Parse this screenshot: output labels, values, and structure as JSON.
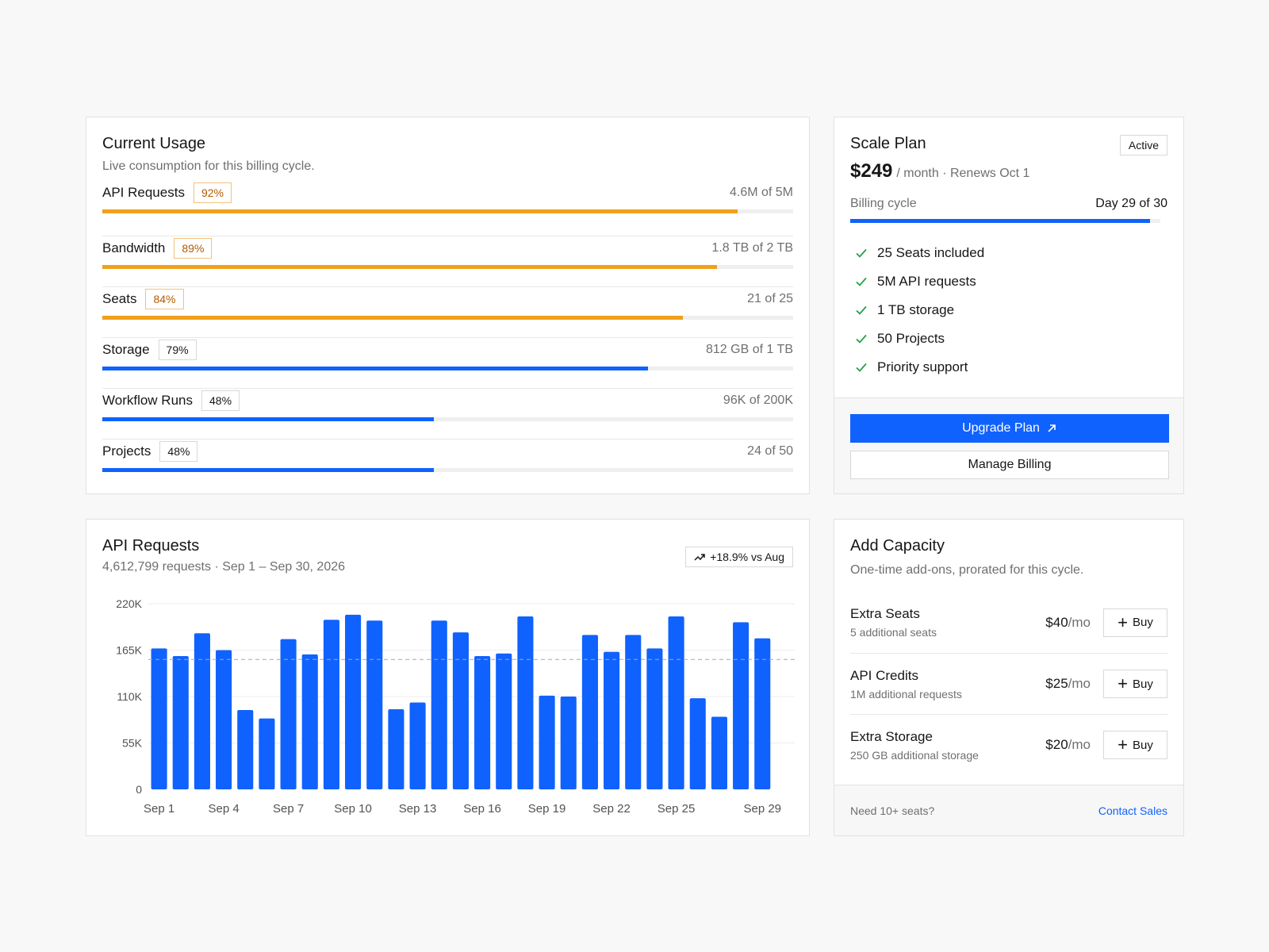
{
  "usage": {
    "title": "Current Usage",
    "subtitle": "Live consumption for this billing cycle.",
    "rows": [
      {
        "label": "API Requests",
        "pct": "92%",
        "value": "4.6M of 5M",
        "fill": 0.92,
        "status": "warn"
      },
      {
        "label": "Bandwidth",
        "pct": "89%",
        "value": "1.8 TB of 2 TB",
        "fill": 0.89,
        "status": "warn"
      },
      {
        "label": "Seats",
        "pct": "84%",
        "value": "21 of 25",
        "fill": 0.84,
        "status": "warn"
      },
      {
        "label": "Storage",
        "pct": "79%",
        "value": "812 GB of 1 TB",
        "fill": 0.79,
        "status": "ok"
      },
      {
        "label": "Workflow Runs",
        "pct": "48%",
        "value": "96K of 200K",
        "fill": 0.48,
        "status": "ok"
      },
      {
        "label": "Projects",
        "pct": "48%",
        "value": "24 of 50",
        "fill": 0.48,
        "status": "ok"
      }
    ]
  },
  "plan": {
    "name": "Scale Plan",
    "badge": "Active",
    "price": "$249",
    "price_meta": "/ month · Renews Oct 1",
    "cycle_label": "Billing cycle",
    "cycle_value": "Day 29 of 30",
    "cycle_progress": 0.967,
    "features": [
      "25 Seats included",
      "5M API requests",
      "1 TB storage",
      "50 Projects",
      "Priority support"
    ],
    "upgrade_label": "Upgrade Plan",
    "manage_label": "Manage Billing"
  },
  "api_chart": {
    "title": "API Requests",
    "subtitle": "4,612,799 requests · Sep 1 – Sep 30, 2026",
    "trend": "+18.9% vs Aug"
  },
  "chart_data": {
    "type": "bar",
    "title": "API Requests",
    "categories": [
      "Sep 1",
      "Sep 2",
      "Sep 3",
      "Sep 4",
      "Sep 5",
      "Sep 6",
      "Sep 7",
      "Sep 8",
      "Sep 9",
      "Sep 10",
      "Sep 11",
      "Sep 12",
      "Sep 13",
      "Sep 14",
      "Sep 15",
      "Sep 16",
      "Sep 17",
      "Sep 18",
      "Sep 19",
      "Sep 20",
      "Sep 21",
      "Sep 22",
      "Sep 23",
      "Sep 24",
      "Sep 25",
      "Sep 26",
      "Sep 27",
      "Sep 28",
      "Sep 29",
      "Sep 30"
    ],
    "x_tick_labels": [
      "Sep 1",
      "Sep 4",
      "Sep 7",
      "Sep 10",
      "Sep 13",
      "Sep 16",
      "Sep 19",
      "Sep 22",
      "Sep 25",
      "Sep 29"
    ],
    "values": [
      167000,
      158000,
      185000,
      165000,
      94000,
      84000,
      178000,
      160000,
      201000,
      207000,
      200000,
      95000,
      103000,
      200000,
      186000,
      158000,
      161000,
      205000,
      111000,
      110000,
      183000,
      163000,
      183000,
      167000,
      205000,
      108000,
      86000,
      198000,
      179000,
      null
    ],
    "average": 154000,
    "ylim": [
      0,
      220000
    ],
    "y_ticks": [
      "0",
      "55K",
      "110K",
      "165K",
      "220K"
    ],
    "y_tick_values": [
      0,
      55000,
      110000,
      165000,
      220000
    ],
    "color": "#0f62fe",
    "grid": true
  },
  "capacity": {
    "title": "Add Capacity",
    "subtitle": "One-time add-ons, prorated for this cycle.",
    "items": [
      {
        "name": "Extra Seats",
        "desc": "5 additional seats",
        "price": "$40",
        "per": "/mo",
        "buy": "Buy"
      },
      {
        "name": "API Credits",
        "desc": "1M additional requests",
        "price": "$25",
        "per": "/mo",
        "buy": "Buy"
      },
      {
        "name": "Extra Storage",
        "desc": "250 GB additional storage",
        "price": "$20",
        "per": "/mo",
        "buy": "Buy"
      }
    ],
    "footer_note": "Need 10+ seats?",
    "footer_link": "Contact Sales"
  },
  "colors": {
    "accent": "#0f62fe",
    "warning": "#f1a01b",
    "warning_text": "#b25b00",
    "success": "#24a148"
  }
}
